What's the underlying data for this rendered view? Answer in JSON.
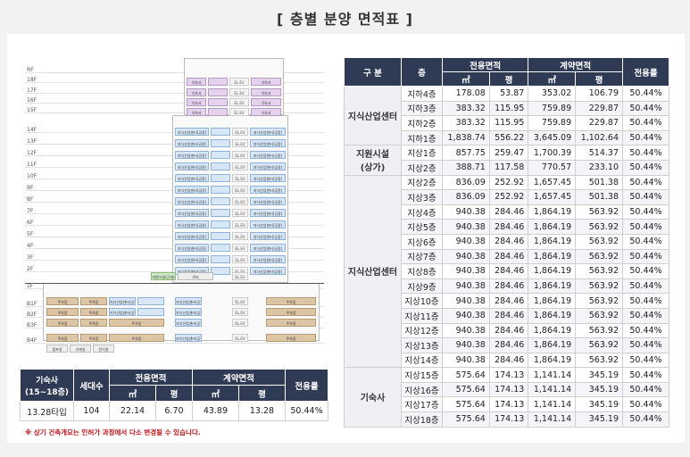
{
  "title": "[ 층별 분양 면적표 ]",
  "main_table": {
    "headers": {
      "category": "구 분",
      "floor": "층",
      "exclusive_area": "전용면적",
      "contract_area": "계약면적",
      "ratio": "전용률",
      "sqm": "㎡",
      "pyeong": "평"
    },
    "groups": [
      {
        "category": "지식산업센터",
        "rows": [
          {
            "floor": "지하4층",
            "ex_m2": "178.08",
            "ex_py": "53.87",
            "ct_m2": "353.02",
            "ct_py": "106.79",
            "ratio": "50.44%"
          },
          {
            "floor": "지하3층",
            "ex_m2": "383.32",
            "ex_py": "115.95",
            "ct_m2": "759.89",
            "ct_py": "229.87",
            "ratio": "50.44%"
          },
          {
            "floor": "지하2층",
            "ex_m2": "383.32",
            "ex_py": "115.95",
            "ct_m2": "759.89",
            "ct_py": "229.87",
            "ratio": "50.44%"
          },
          {
            "floor": "지하1층",
            "ex_m2": "1,838.74",
            "ex_py": "556.22",
            "ct_m2": "3,645.09",
            "ct_py": "1,102.64",
            "ratio": "50.44%"
          }
        ]
      },
      {
        "category": "지원시설\n(상가)",
        "rows": [
          {
            "floor": "지상1층",
            "ex_m2": "857.75",
            "ex_py": "259.47",
            "ct_m2": "1,700.39",
            "ct_py": "514.37",
            "ratio": "50.44%"
          },
          {
            "floor": "지상2층",
            "ex_m2": "388.71",
            "ex_py": "117.58",
            "ct_m2": "770.57",
            "ct_py": "233.10",
            "ratio": "50.44%"
          }
        ]
      },
      {
        "category": "지식산업센터",
        "rows": [
          {
            "floor": "지상2층",
            "ex_m2": "836.09",
            "ex_py": "252.92",
            "ct_m2": "1,657.45",
            "ct_py": "501.38",
            "ratio": "50.44%"
          },
          {
            "floor": "지상3층",
            "ex_m2": "836.09",
            "ex_py": "252.92",
            "ct_m2": "1,657.45",
            "ct_py": "501.38",
            "ratio": "50.44%"
          },
          {
            "floor": "지상4층",
            "ex_m2": "940.38",
            "ex_py": "284.46",
            "ct_m2": "1,864.19",
            "ct_py": "563.92",
            "ratio": "50.44%"
          },
          {
            "floor": "지상5층",
            "ex_m2": "940.38",
            "ex_py": "284.46",
            "ct_m2": "1,864.19",
            "ct_py": "563.92",
            "ratio": "50.44%"
          },
          {
            "floor": "지상6층",
            "ex_m2": "940.38",
            "ex_py": "284.46",
            "ct_m2": "1,864.19",
            "ct_py": "563.92",
            "ratio": "50.44%"
          },
          {
            "floor": "지상7층",
            "ex_m2": "940.38",
            "ex_py": "284.46",
            "ct_m2": "1,864.19",
            "ct_py": "563.92",
            "ratio": "50.44%"
          },
          {
            "floor": "지상8층",
            "ex_m2": "940.38",
            "ex_py": "284.46",
            "ct_m2": "1,864.19",
            "ct_py": "563.92",
            "ratio": "50.44%"
          },
          {
            "floor": "지상9층",
            "ex_m2": "940.38",
            "ex_py": "284.46",
            "ct_m2": "1,864.19",
            "ct_py": "563.92",
            "ratio": "50.44%"
          },
          {
            "floor": "지상10층",
            "ex_m2": "940.38",
            "ex_py": "284.46",
            "ct_m2": "1,864.19",
            "ct_py": "563.92",
            "ratio": "50.44%"
          },
          {
            "floor": "지상11층",
            "ex_m2": "940.38",
            "ex_py": "284.46",
            "ct_m2": "1,864.19",
            "ct_py": "563.92",
            "ratio": "50.44%"
          },
          {
            "floor": "지상12층",
            "ex_m2": "940.38",
            "ex_py": "284.46",
            "ct_m2": "1,864.19",
            "ct_py": "563.92",
            "ratio": "50.44%"
          },
          {
            "floor": "지상13층",
            "ex_m2": "940.38",
            "ex_py": "284.46",
            "ct_m2": "1,864.19",
            "ct_py": "563.92",
            "ratio": "50.44%"
          },
          {
            "floor": "지상14층",
            "ex_m2": "940.38",
            "ex_py": "284.46",
            "ct_m2": "1,864.19",
            "ct_py": "563.92",
            "ratio": "50.44%"
          }
        ]
      },
      {
        "category": "기숙사",
        "rows": [
          {
            "floor": "지상15층",
            "ex_m2": "575.64",
            "ex_py": "174.13",
            "ct_m2": "1,141.14",
            "ct_py": "345.19",
            "ratio": "50.44%"
          },
          {
            "floor": "지상16층",
            "ex_m2": "575.64",
            "ex_py": "174.13",
            "ct_m2": "1,141.14",
            "ct_py": "345.19",
            "ratio": "50.44%"
          },
          {
            "floor": "지상17층",
            "ex_m2": "575.64",
            "ex_py": "174.13",
            "ct_m2": "1,141.14",
            "ct_py": "345.19",
            "ratio": "50.44%"
          },
          {
            "floor": "지상18층",
            "ex_m2": "575.64",
            "ex_py": "174.13",
            "ct_m2": "1,141.14",
            "ct_py": "345.19",
            "ratio": "50.44%"
          }
        ]
      }
    ]
  },
  "dorm_table": {
    "headers": {
      "type": "기숙사\n(15~18층)",
      "units": "세대수",
      "exclusive_area": "전용면적",
      "contract_area": "계약면적",
      "ratio": "전용률",
      "sqm": "㎡",
      "pyeong": "평"
    },
    "row": {
      "type": "13.28타입",
      "units": "104",
      "ex_m2": "22.14",
      "ex_py": "6.70",
      "ct_m2": "43.89",
      "ct_py": "13.28",
      "ratio": "50.44%"
    }
  },
  "note": "※ 상기 건축개요는 인허가 과정에서 다소 변경될 수 있습니다.",
  "diagram": {
    "floor_labels": [
      "RF",
      "18F",
      "17F",
      "16F",
      "15F",
      "14F",
      "13F",
      "12F",
      "11F",
      "10F",
      "9F",
      "8F",
      "7F",
      "6F",
      "5F",
      "4F",
      "3F",
      "2F",
      "1F",
      "B1F",
      "B2F",
      "B3F",
      "B4F"
    ],
    "dorm_label": "기숙사",
    "office_label": "지식산업센터(공장)",
    "core_label": "EL.EV",
    "lobby_label": "로비",
    "retail_label": "지원시설(근생)",
    "parking_label": "주차장",
    "machine_label": "기계실",
    "electric_label": "전기실",
    "pump_label": "펌프실",
    "basement_office_label": "지식산업센터(공장)"
  },
  "colors": {
    "header_navy": "#2f3a55",
    "office_blue": "#d7e7f7",
    "dorm_purple": "#e5d3ee",
    "parking_tan": "#ddc6a6",
    "note_red": "#c0161c"
  }
}
